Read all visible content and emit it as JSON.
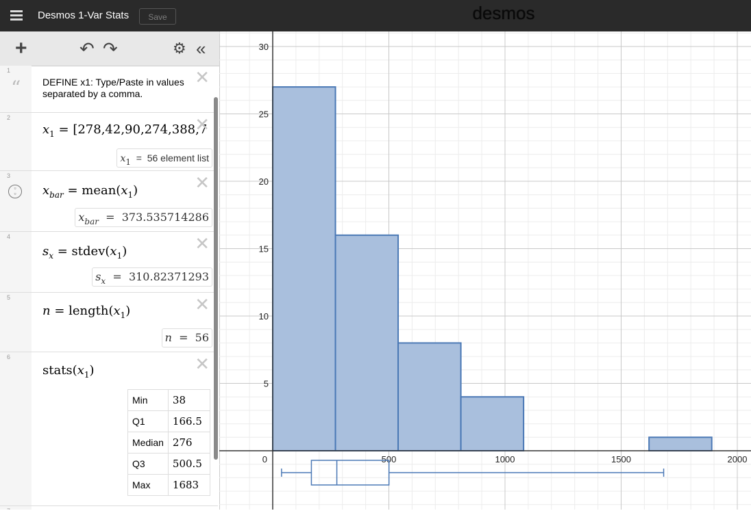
{
  "header": {
    "title": "Desmos 1-Var Stats",
    "save_label": "Save",
    "logo": "desmos"
  },
  "toolbar": {
    "add_icon": "plus-icon",
    "undo_icon": "undo-icon",
    "redo_icon": "redo-icon",
    "settings_icon": "gear-icon",
    "collapse_icon": "double-chevron-left-icon"
  },
  "expressions": [
    {
      "index": "1",
      "type": "note",
      "text": "DEFINE x1:  Type/Paste in values separated by a comma."
    },
    {
      "index": "2",
      "latex": "x_1 = [278,42,90,274,388,7…",
      "result": "x₁ = 56 element list"
    },
    {
      "index": "3",
      "latex": "x_bar = mean(x_1)",
      "result": "x_bar = 373.535714286"
    },
    {
      "index": "4",
      "latex": "s_x = stdev(x_1)",
      "result": "s_x = 310.82371293"
    },
    {
      "index": "5",
      "latex": "n = length(x_1)",
      "result": "n = 56"
    },
    {
      "index": "6",
      "latex": "stats(x_1)",
      "stats": [
        {
          "label": "Min",
          "value": "38"
        },
        {
          "label": "Q1",
          "value": "166.5"
        },
        {
          "label": "Median",
          "value": "276"
        },
        {
          "label": "Q3",
          "value": "500.5"
        },
        {
          "label": "Max",
          "value": "1683"
        }
      ]
    },
    {
      "index": "7"
    }
  ],
  "chart_data": {
    "type": "bar",
    "title": "",
    "xlabel": "",
    "ylabel": "",
    "xlim": [
      0,
      2000
    ],
    "ylim": [
      -3.3,
      30.5
    ],
    "x_ticks": [
      0,
      500,
      1000,
      1500,
      2000
    ],
    "y_ticks": [
      5,
      10,
      15,
      20,
      25,
      30
    ],
    "grid": true,
    "bin_width": 270,
    "bars": [
      {
        "x_start": 0,
        "x_end": 270,
        "value": 27
      },
      {
        "x_start": 270,
        "x_end": 540,
        "value": 16
      },
      {
        "x_start": 540,
        "x_end": 810,
        "value": 8
      },
      {
        "x_start": 810,
        "x_end": 1080,
        "value": 4
      },
      {
        "x_start": 1620,
        "x_end": 1890,
        "value": 1
      }
    ],
    "boxplot": {
      "min": 38,
      "q1": 166.5,
      "median": 276,
      "q3": 500.5,
      "max": 1683
    },
    "colors": {
      "bar_fill": "#a9bfdd",
      "bar_stroke": "#4a78b5",
      "grid_minor": "#ececec",
      "grid_major": "#c8c8c8",
      "axis": "#333333"
    }
  }
}
